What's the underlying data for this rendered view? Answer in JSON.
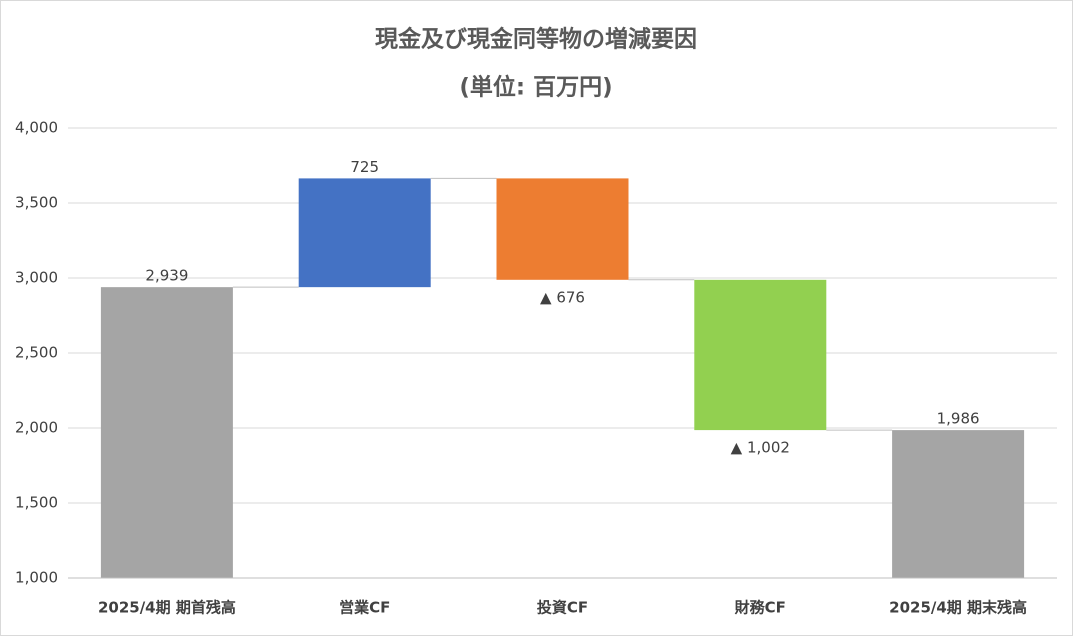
{
  "chart_data": {
    "type": "waterfall",
    "title": "現金及び現金同等物の増減要因",
    "subtitle": "(単位: 百万円)",
    "categories": [
      "2025/4期 期首残高",
      "営業CF",
      "投資CF",
      "財務CF",
      "2025/4期 期末残高"
    ],
    "values": [
      2939,
      725,
      -676,
      -1002,
      1986
    ],
    "value_labels": [
      "2,939",
      "725",
      "▲ 676",
      "▲ 1,002",
      "1,986"
    ],
    "measure": [
      "absolute",
      "relative",
      "relative",
      "relative",
      "absolute"
    ],
    "colors": [
      "#a5a5a5",
      "#4472c4",
      "#ed7d31",
      "#92d050",
      "#a5a5a5"
    ],
    "ylim": [
      1000,
      4000
    ],
    "yticks": [
      {
        "value": 1000,
        "label": "1,000"
      },
      {
        "value": 1500,
        "label": "1,500"
      },
      {
        "value": 2000,
        "label": "2,000"
      },
      {
        "value": 2500,
        "label": "2,500"
      },
      {
        "value": 3000,
        "label": "3,000"
      },
      {
        "value": 3500,
        "label": "3,500"
      },
      {
        "value": 4000,
        "label": "4,000"
      }
    ],
    "grid": true
  }
}
